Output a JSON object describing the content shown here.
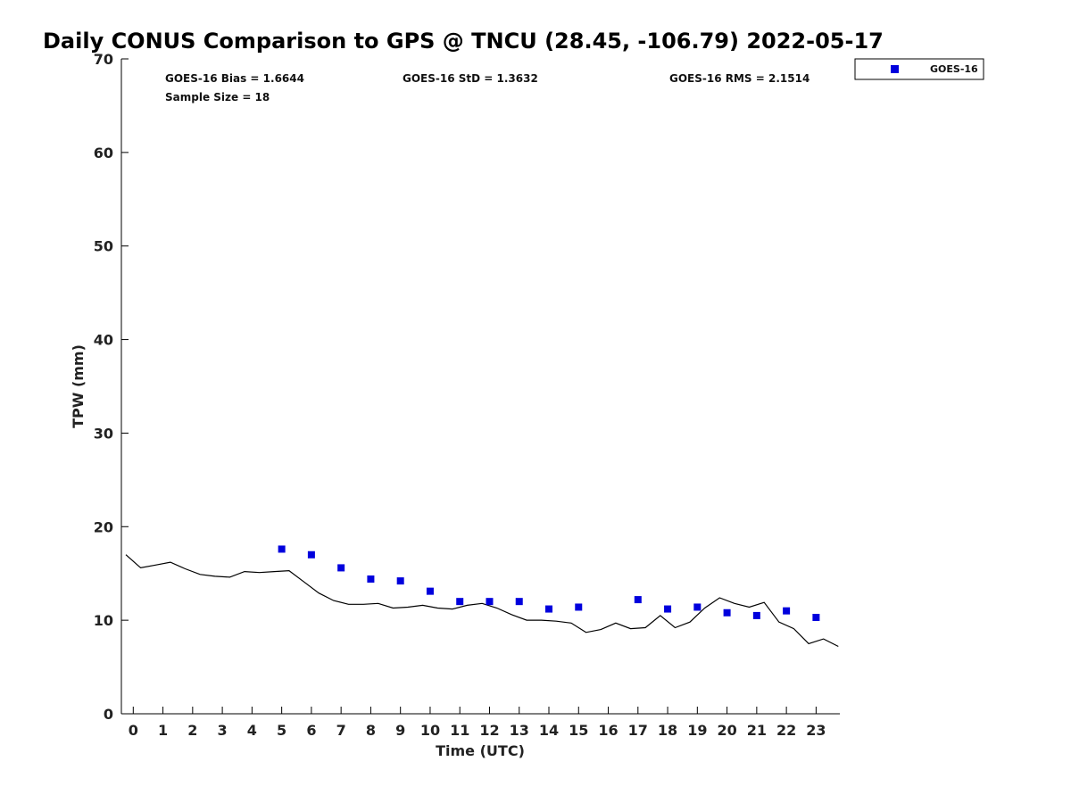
{
  "chart_data": {
    "type": "scatter",
    "title": "Daily CONUS Comparison to GPS @ TNCU (28.45, -106.79) 2022-05-17",
    "xlabel": "Time (UTC)",
    "ylabel": "TPW (mm)",
    "xlim": [
      -0.4,
      23.8
    ],
    "ylim": [
      0,
      70
    ],
    "x_ticks": [
      "0",
      "1",
      "2",
      "3",
      "4",
      "5",
      "6",
      "7",
      "8",
      "9",
      "10",
      "11",
      "12",
      "13",
      "14",
      "15",
      "16",
      "17",
      "18",
      "19",
      "20",
      "21",
      "22",
      "23"
    ],
    "y_ticks": [
      "0",
      "10",
      "20",
      "30",
      "40",
      "50",
      "60",
      "70"
    ],
    "grid": false,
    "legend": {
      "position": "top-right",
      "entries": [
        "GOES-16"
      ]
    },
    "stats": {
      "bias": "GOES-16 Bias = 1.6644",
      "std": "GOES-16 StD = 1.3632",
      "rms": "GOES-16 RMS = 2.1514",
      "sample": "Sample Size = 18"
    },
    "series": [
      {
        "name": "GOES-16",
        "marker": "square",
        "color": "#0000dd",
        "x": [
          5,
          6,
          7,
          8,
          9,
          10,
          11,
          12,
          13,
          14,
          15,
          17,
          18,
          19,
          20,
          21,
          22,
          23
        ],
        "y": [
          17.6,
          17.0,
          15.6,
          14.4,
          14.2,
          13.1,
          12.0,
          12.0,
          12.0,
          11.2,
          11.4,
          12.2,
          11.2,
          11.4,
          10.8,
          10.5,
          11.0,
          10.3
        ]
      },
      {
        "marker": "line",
        "color": "#000000",
        "x": [
          -0.25,
          0.25,
          0.75,
          1.25,
          1.75,
          2.25,
          2.75,
          3.25,
          3.75,
          4.25,
          4.75,
          5.25,
          5.75,
          6.25,
          6.75,
          7.25,
          7.75,
          8.25,
          8.75,
          9.25,
          9.75,
          10.25,
          10.75,
          11.25,
          11.75,
          12.25,
          12.75,
          13.25,
          13.75,
          14.25,
          14.75,
          15.25,
          15.75,
          16.25,
          16.75,
          17.25,
          17.75,
          18.25,
          18.75,
          19.25,
          19.75,
          20.25,
          20.75,
          21.25,
          21.75,
          22.25,
          22.75,
          23.25,
          23.75
        ],
        "y": [
          17.0,
          15.6,
          15.9,
          16.2,
          15.5,
          14.9,
          14.7,
          14.6,
          15.2,
          15.1,
          15.2,
          15.3,
          14.1,
          12.9,
          12.1,
          11.7,
          11.7,
          11.8,
          11.3,
          11.4,
          11.6,
          11.3,
          11.2,
          11.6,
          11.8,
          11.3,
          10.6,
          10.0,
          10.0,
          9.9,
          9.7,
          8.7,
          9.0,
          9.7,
          9.1,
          9.2,
          10.5,
          9.2,
          9.8,
          11.3,
          12.4,
          11.8,
          11.4,
          11.9,
          9.8,
          9.1,
          7.5,
          8.0,
          7.2
        ]
      }
    ]
  }
}
